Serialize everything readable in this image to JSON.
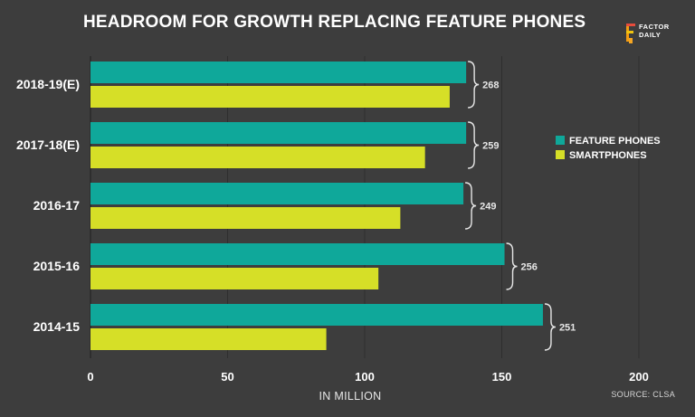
{
  "header": {
    "title": "HEADROOM FOR GROWTH REPLACING FEATURE PHONES",
    "logo_line1": "FACTOR",
    "logo_line2": "DAILY"
  },
  "footer": {
    "source": "SOURCE: CLSA"
  },
  "colors": {
    "background": "#3d3d3d",
    "feature_phones": "#0fa89a",
    "smartphones": "#d6df27"
  },
  "chart_data": {
    "type": "bar",
    "orientation": "horizontal",
    "title": "HEADROOM FOR GROWTH REPLACING FEATURE PHONES",
    "xlabel": "IN MILLION",
    "ylabel": "",
    "xlim": [
      0,
      200
    ],
    "xticks": [
      0,
      50,
      100,
      150,
      200
    ],
    "grid": true,
    "legend_position": "right",
    "categories": [
      "2018-19(E)",
      "2017-18(E)",
      "2016-17",
      "2015-16",
      "2014-15"
    ],
    "series": [
      {
        "name": "FEATURE PHONES",
        "color": "#0fa89a",
        "values": [
          137,
          137,
          136,
          151,
          165
        ]
      },
      {
        "name": "SMARTPHONES",
        "color": "#d6df27",
        "values": [
          131,
          122,
          113,
          105,
          86
        ]
      }
    ],
    "totals": [
      268,
      259,
      249,
      256,
      251
    ]
  }
}
